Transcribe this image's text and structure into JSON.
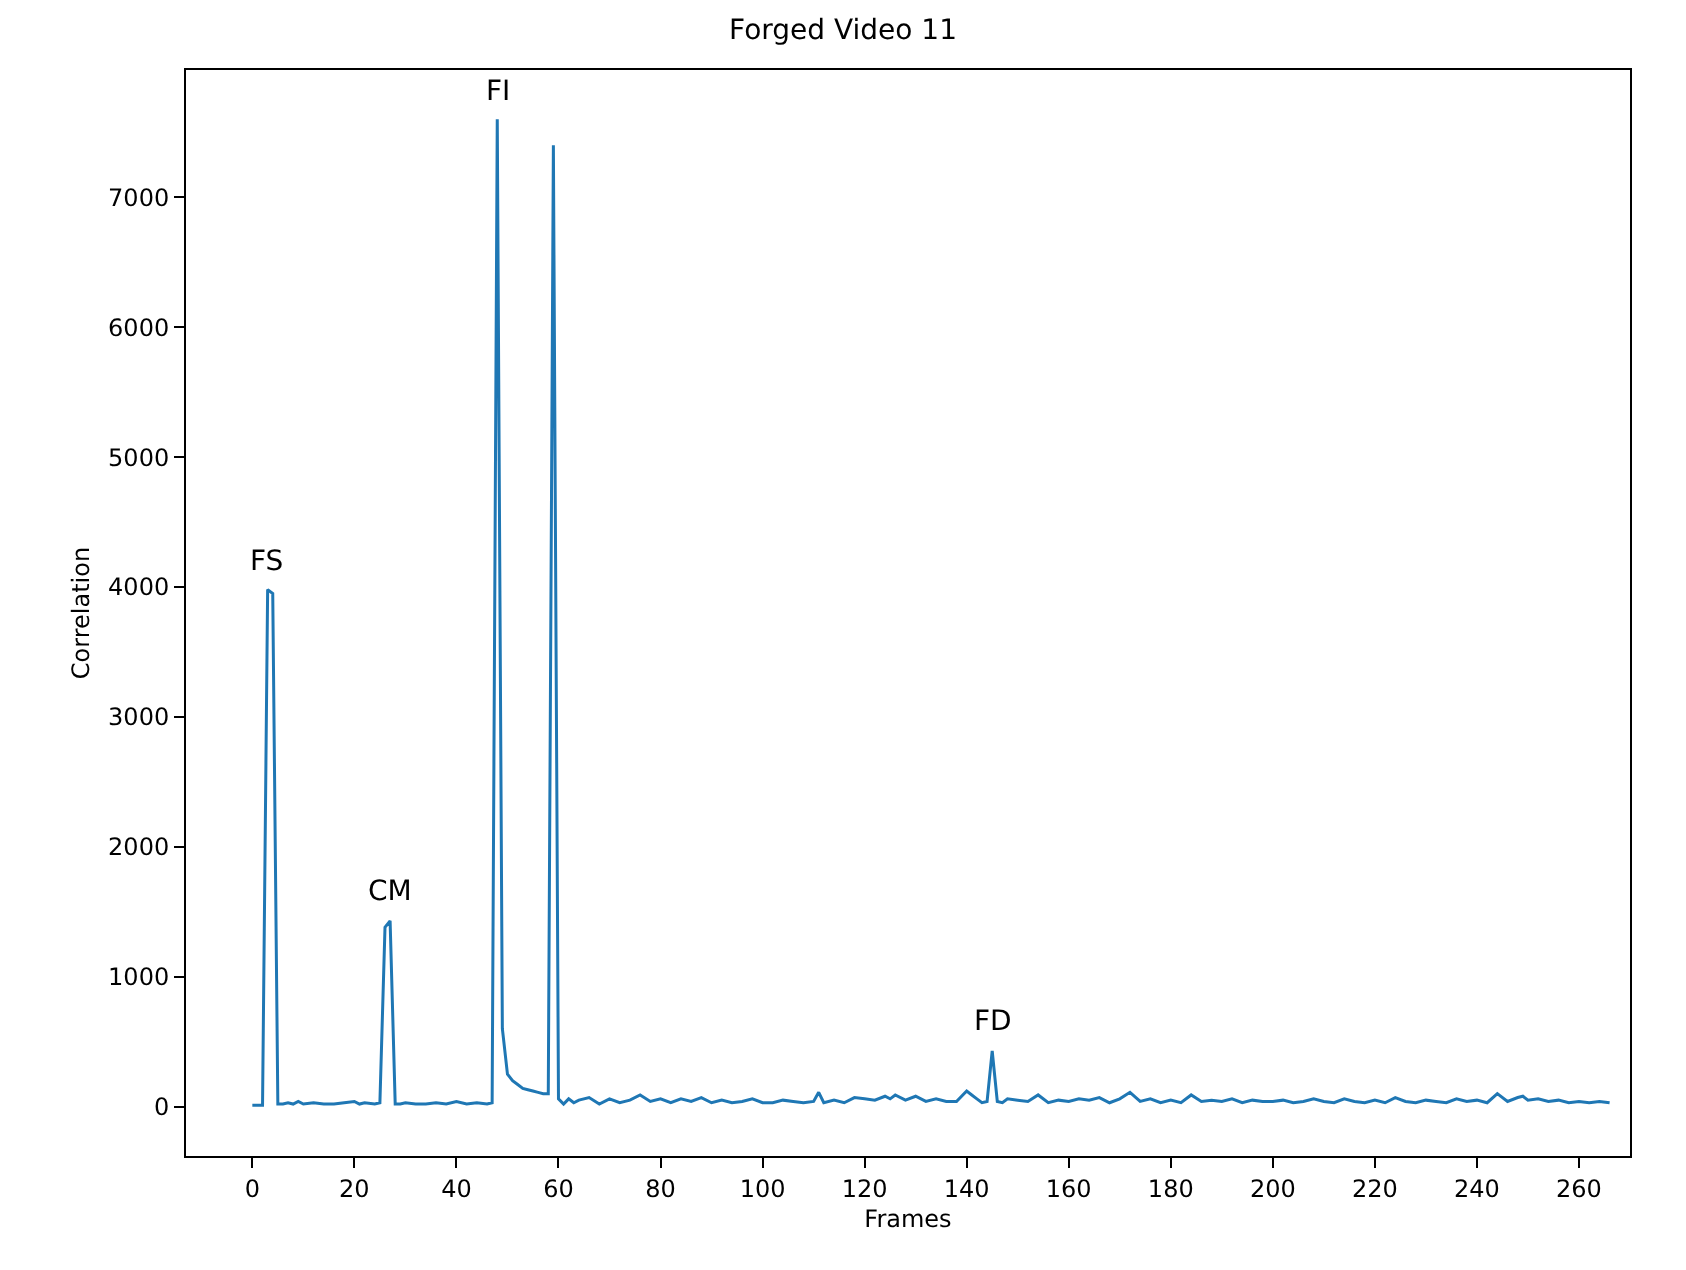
{
  "chart_data": {
    "type": "line",
    "title": "Forged Video 11",
    "xlabel": "Frames",
    "ylabel": "Correlation",
    "series": [
      {
        "color": "#1f77b4",
        "x": [
          0,
          1,
          2,
          3,
          4,
          5,
          6,
          7,
          8,
          9,
          10,
          12,
          14,
          16,
          18,
          20,
          21,
          22,
          24,
          25,
          26,
          27,
          28,
          29,
          30,
          32,
          34,
          36,
          38,
          40,
          42,
          44,
          46,
          47,
          48,
          49,
          50,
          51,
          52,
          53,
          54,
          55,
          56,
          57,
          58,
          59,
          60,
          61,
          62,
          63,
          64,
          66,
          68,
          70,
          72,
          74,
          76,
          78,
          80,
          82,
          84,
          86,
          88,
          90,
          92,
          94,
          96,
          98,
          100,
          102,
          104,
          106,
          108,
          110,
          111,
          112,
          114,
          116,
          118,
          120,
          122,
          124,
          125,
          126,
          128,
          130,
          132,
          134,
          136,
          138,
          140,
          141,
          142,
          143,
          144,
          145,
          146,
          147,
          148,
          150,
          152,
          154,
          156,
          158,
          160,
          162,
          164,
          166,
          168,
          170,
          172,
          174,
          176,
          178,
          180,
          182,
          184,
          186,
          188,
          190,
          192,
          194,
          196,
          198,
          200,
          202,
          204,
          206,
          208,
          210,
          212,
          214,
          216,
          218,
          220,
          222,
          224,
          226,
          228,
          230,
          232,
          234,
          236,
          238,
          240,
          242,
          244,
          246,
          248,
          249,
          250,
          252,
          254,
          256,
          258,
          260,
          262,
          264,
          266
        ],
        "values": [
          10,
          10,
          10,
          3980,
          3950,
          20,
          20,
          30,
          20,
          40,
          20,
          30,
          20,
          20,
          30,
          40,
          20,
          30,
          20,
          30,
          1380,
          1430,
          20,
          20,
          30,
          20,
          20,
          30,
          20,
          40,
          20,
          30,
          20,
          30,
          7600,
          600,
          250,
          200,
          170,
          140,
          130,
          120,
          110,
          100,
          100,
          7400,
          60,
          20,
          60,
          30,
          50,
          70,
          20,
          60,
          30,
          50,
          90,
          40,
          60,
          30,
          60,
          40,
          70,
          30,
          50,
          30,
          40,
          60,
          30,
          30,
          50,
          40,
          30,
          40,
          110,
          30,
          50,
          30,
          70,
          60,
          50,
          80,
          60,
          90,
          50,
          80,
          40,
          60,
          40,
          40,
          120,
          90,
          60,
          30,
          40,
          430,
          40,
          30,
          60,
          50,
          40,
          90,
          30,
          50,
          40,
          60,
          50,
          70,
          30,
          60,
          110,
          40,
          60,
          30,
          50,
          30,
          90,
          40,
          50,
          40,
          60,
          30,
          50,
          40,
          40,
          50,
          30,
          40,
          60,
          40,
          30,
          60,
          40,
          30,
          50,
          30,
          70,
          40,
          30,
          50,
          40,
          30,
          60,
          40,
          50,
          30,
          100,
          40,
          70,
          80,
          50,
          60,
          40,
          50,
          30,
          40,
          30,
          40,
          30
        ],
        "line_style": "solid"
      }
    ],
    "xlim": [
      -13,
      270
    ],
    "ylim": [
      -380,
      7980
    ],
    "xticks": [
      0,
      20,
      40,
      60,
      80,
      100,
      120,
      140,
      160,
      180,
      200,
      220,
      240,
      260
    ],
    "yticks": [
      0,
      1000,
      2000,
      3000,
      4000,
      5000,
      6000,
      7000
    ],
    "marker": "none",
    "annotations": [
      {
        "text": "FS",
        "x": 3,
        "y": 3980
      },
      {
        "text": "CM",
        "x": 27,
        "y": 1430
      },
      {
        "text": "FI",
        "x": 48,
        "y": 7600
      },
      {
        "text": "FD",
        "x": 145,
        "y": 430
      }
    ]
  }
}
